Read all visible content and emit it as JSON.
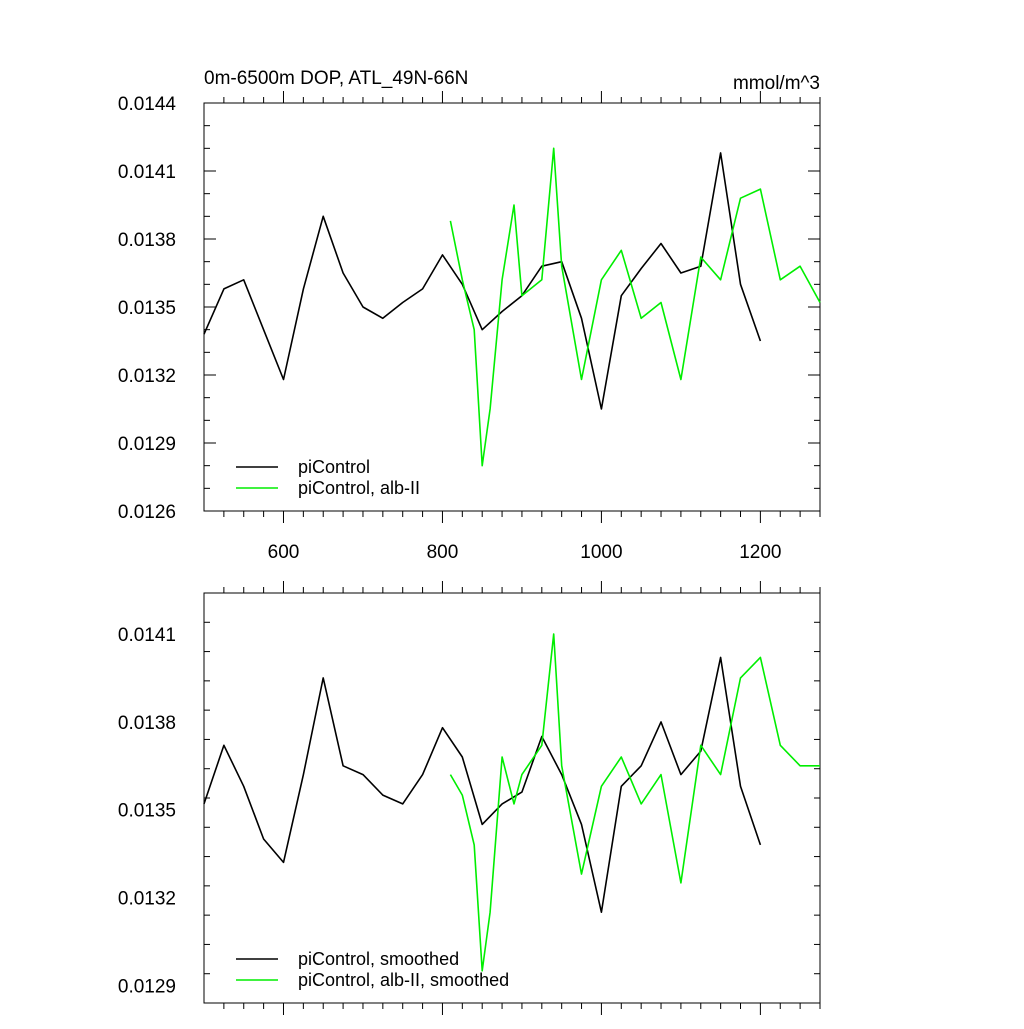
{
  "chart_data": [
    {
      "type": "line",
      "title": "0m-6500m DOP, ATL_49N-66N",
      "units": "mmol/m^3",
      "xlim": [
        500,
        1275
      ],
      "ylim": [
        0.0126,
        0.0144
      ],
      "x_ticks": [
        600,
        800,
        1000,
        1200
      ],
      "y_ticks": [
        0.0126,
        0.0129,
        0.0132,
        0.0135,
        0.0138,
        0.0141,
        0.0144
      ],
      "series": [
        {
          "name": "piControl",
          "color": "#000000",
          "x": [
            500,
            525,
            550,
            575,
            600,
            625,
            650,
            675,
            700,
            725,
            750,
            775,
            800,
            825,
            850,
            875,
            900,
            925,
            950,
            975,
            1000,
            1025,
            1050,
            1075,
            1100,
            1125,
            1150,
            1175,
            1200
          ],
          "y": [
            0.01338,
            0.01358,
            0.01362,
            0.0134,
            0.01318,
            0.01358,
            0.0139,
            0.01365,
            0.0135,
            0.01345,
            0.01352,
            0.01358,
            0.01373,
            0.0136,
            0.0134,
            0.01348,
            0.01355,
            0.01368,
            0.0137,
            0.01345,
            0.01305,
            0.01355,
            0.01367,
            0.01378,
            0.01365,
            0.01368,
            0.01418,
            0.0136,
            0.01335
          ]
        },
        {
          "name": "piControl, alb-II",
          "color": "#00ee00",
          "x": [
            810,
            825,
            840,
            850,
            860,
            875,
            890,
            900,
            925,
            940,
            950,
            975,
            1000,
            1025,
            1050,
            1075,
            1100,
            1125,
            1150,
            1175,
            1200,
            1225,
            1250,
            1275
          ],
          "y": [
            0.01388,
            0.01362,
            0.0134,
            0.0128,
            0.01305,
            0.01362,
            0.01395,
            0.01355,
            0.01362,
            0.0142,
            0.01368,
            0.01318,
            0.01362,
            0.01375,
            0.01345,
            0.01352,
            0.01318,
            0.01372,
            0.01362,
            0.01398,
            0.01402,
            0.01362,
            0.01368,
            0.01352
          ]
        }
      ],
      "legend_position": "bottom-left"
    },
    {
      "type": "line",
      "title": "",
      "xlim": [
        500,
        1275
      ],
      "ylim": [
        0.01284,
        0.01424
      ],
      "x_ticks": [
        600,
        800,
        1000,
        1200
      ],
      "y_ticks": [
        0.0129,
        0.0132,
        0.0135,
        0.0138,
        0.0141
      ],
      "series": [
        {
          "name": "piControl, smoothed",
          "color": "#000000",
          "x": [
            500,
            525,
            550,
            575,
            600,
            625,
            650,
            675,
            700,
            725,
            750,
            775,
            800,
            825,
            850,
            875,
            900,
            925,
            950,
            975,
            1000,
            1025,
            1050,
            1075,
            1100,
            1125,
            1150,
            1175,
            1200
          ],
          "y": [
            0.01352,
            0.01372,
            0.01358,
            0.0134,
            0.01332,
            0.01362,
            0.01395,
            0.01365,
            0.01362,
            0.01355,
            0.01352,
            0.01362,
            0.01378,
            0.01368,
            0.01345,
            0.01352,
            0.01356,
            0.01375,
            0.01362,
            0.01345,
            0.01315,
            0.01358,
            0.01365,
            0.0138,
            0.01362,
            0.0137,
            0.01402,
            0.01358,
            0.01338
          ]
        },
        {
          "name": "piControl, alb-II, smoothed",
          "color": "#00ee00",
          "x": [
            810,
            825,
            840,
            850,
            860,
            875,
            890,
            900,
            925,
            940,
            950,
            975,
            1000,
            1025,
            1050,
            1075,
            1100,
            1125,
            1150,
            1175,
            1200,
            1225,
            1250,
            1275
          ],
          "y": [
            0.01362,
            0.01355,
            0.01338,
            0.01295,
            0.01315,
            0.01368,
            0.01352,
            0.01362,
            0.01372,
            0.0141,
            0.01365,
            0.01328,
            0.01358,
            0.01368,
            0.01352,
            0.01362,
            0.01325,
            0.01372,
            0.01362,
            0.01395,
            0.01402,
            0.01372,
            0.01365,
            0.01365
          ]
        }
      ],
      "legend_position": "bottom-left"
    }
  ]
}
